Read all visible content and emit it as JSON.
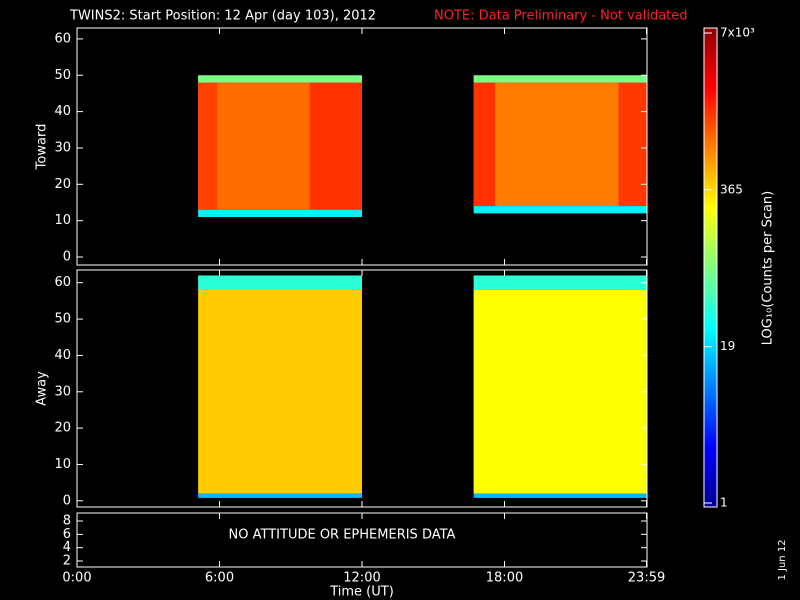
{
  "chart_data": {
    "type": "heatmap",
    "title": "TWINS2: Start Position: 12 Apr (day 103), 2012",
    "note": "NOTE: Data Preliminary - Not validated",
    "xlabel": "Time (UT)",
    "xlim": [
      0,
      24
    ],
    "xticks": [
      {
        "value": 0,
        "label": "0:00"
      },
      {
        "value": 6,
        "label": "6:00"
      },
      {
        "value": 12,
        "label": "12:00"
      },
      {
        "value": 18,
        "label": "18:00"
      },
      {
        "value": 23.98,
        "label": "23:59"
      }
    ],
    "colorbar": {
      "label": "LOG₁₀(Counts per Scan)",
      "lim": [
        1,
        7000
      ],
      "log": true,
      "ticks": [
        1,
        19,
        365,
        {
          "value": 7000,
          "label": "7x10³"
        }
      ]
    },
    "date": "1 Jun 12",
    "panels": [
      {
        "ylabel": "Toward",
        "ylim": [
          -2.2,
          63
        ],
        "yticks": [
          0,
          10,
          20,
          30,
          40,
          50,
          60
        ],
        "blocks": [
          {
            "x": [
              5.1,
              12.0
            ],
            "y": [
              13,
              48
            ],
            "value": 900
          },
          {
            "x": [
              9.8,
              12.0
            ],
            "y": [
              13,
              48
            ],
            "value": 1500
          },
          {
            "x": [
              5.1,
              5.9
            ],
            "y": [
              13,
              48
            ],
            "value": 1300
          },
          {
            "x": [
              5.1,
              12.0
            ],
            "y": [
              48,
              50
            ],
            "value": 80
          },
          {
            "x": [
              5.1,
              12.0
            ],
            "y": [
              11,
              13
            ],
            "value": 25
          },
          {
            "x": [
              16.7,
              23.98
            ],
            "y": [
              14,
              48
            ],
            "value": 800
          },
          {
            "x": [
              16.7,
              17.6
            ],
            "y": [
              14,
              48
            ],
            "value": 1500
          },
          {
            "x": [
              22.8,
              23.98
            ],
            "y": [
              14,
              48
            ],
            "value": 1400
          },
          {
            "x": [
              16.7,
              23.98
            ],
            "y": [
              48,
              50
            ],
            "value": 80
          },
          {
            "x": [
              16.7,
              23.98
            ],
            "y": [
              12,
              14
            ],
            "value": 25
          }
        ]
      },
      {
        "ylabel": "Away",
        "ylim": [
          -1.7,
          63.5
        ],
        "yticks": [
          0,
          10,
          20,
          30,
          40,
          50,
          60
        ],
        "blocks": [
          {
            "x": [
              5.1,
              12.0
            ],
            "y": [
              2,
              58
            ],
            "value": 400
          },
          {
            "x": [
              16.7,
              23.98
            ],
            "y": [
              2,
              58
            ],
            "value": 250
          },
          {
            "x": [
              5.1,
              12.0
            ],
            "y": [
              58,
              62
            ],
            "value": 40
          },
          {
            "x": [
              16.7,
              23.98
            ],
            "y": [
              58,
              62
            ],
            "value": 40
          },
          {
            "x": [
              5.1,
              12.0
            ],
            "y": [
              0.8,
              2
            ],
            "value": 15
          },
          {
            "x": [
              16.7,
              23.98
            ],
            "y": [
              0.8,
              2
            ],
            "value": 15
          }
        ]
      },
      {
        "annotation": "NO ATTITUDE OR EPHEMERIS DATA",
        "ylim": [
          1.1,
          9.2
        ],
        "yticks": [
          2,
          4,
          6,
          8
        ],
        "blocks": []
      }
    ]
  }
}
